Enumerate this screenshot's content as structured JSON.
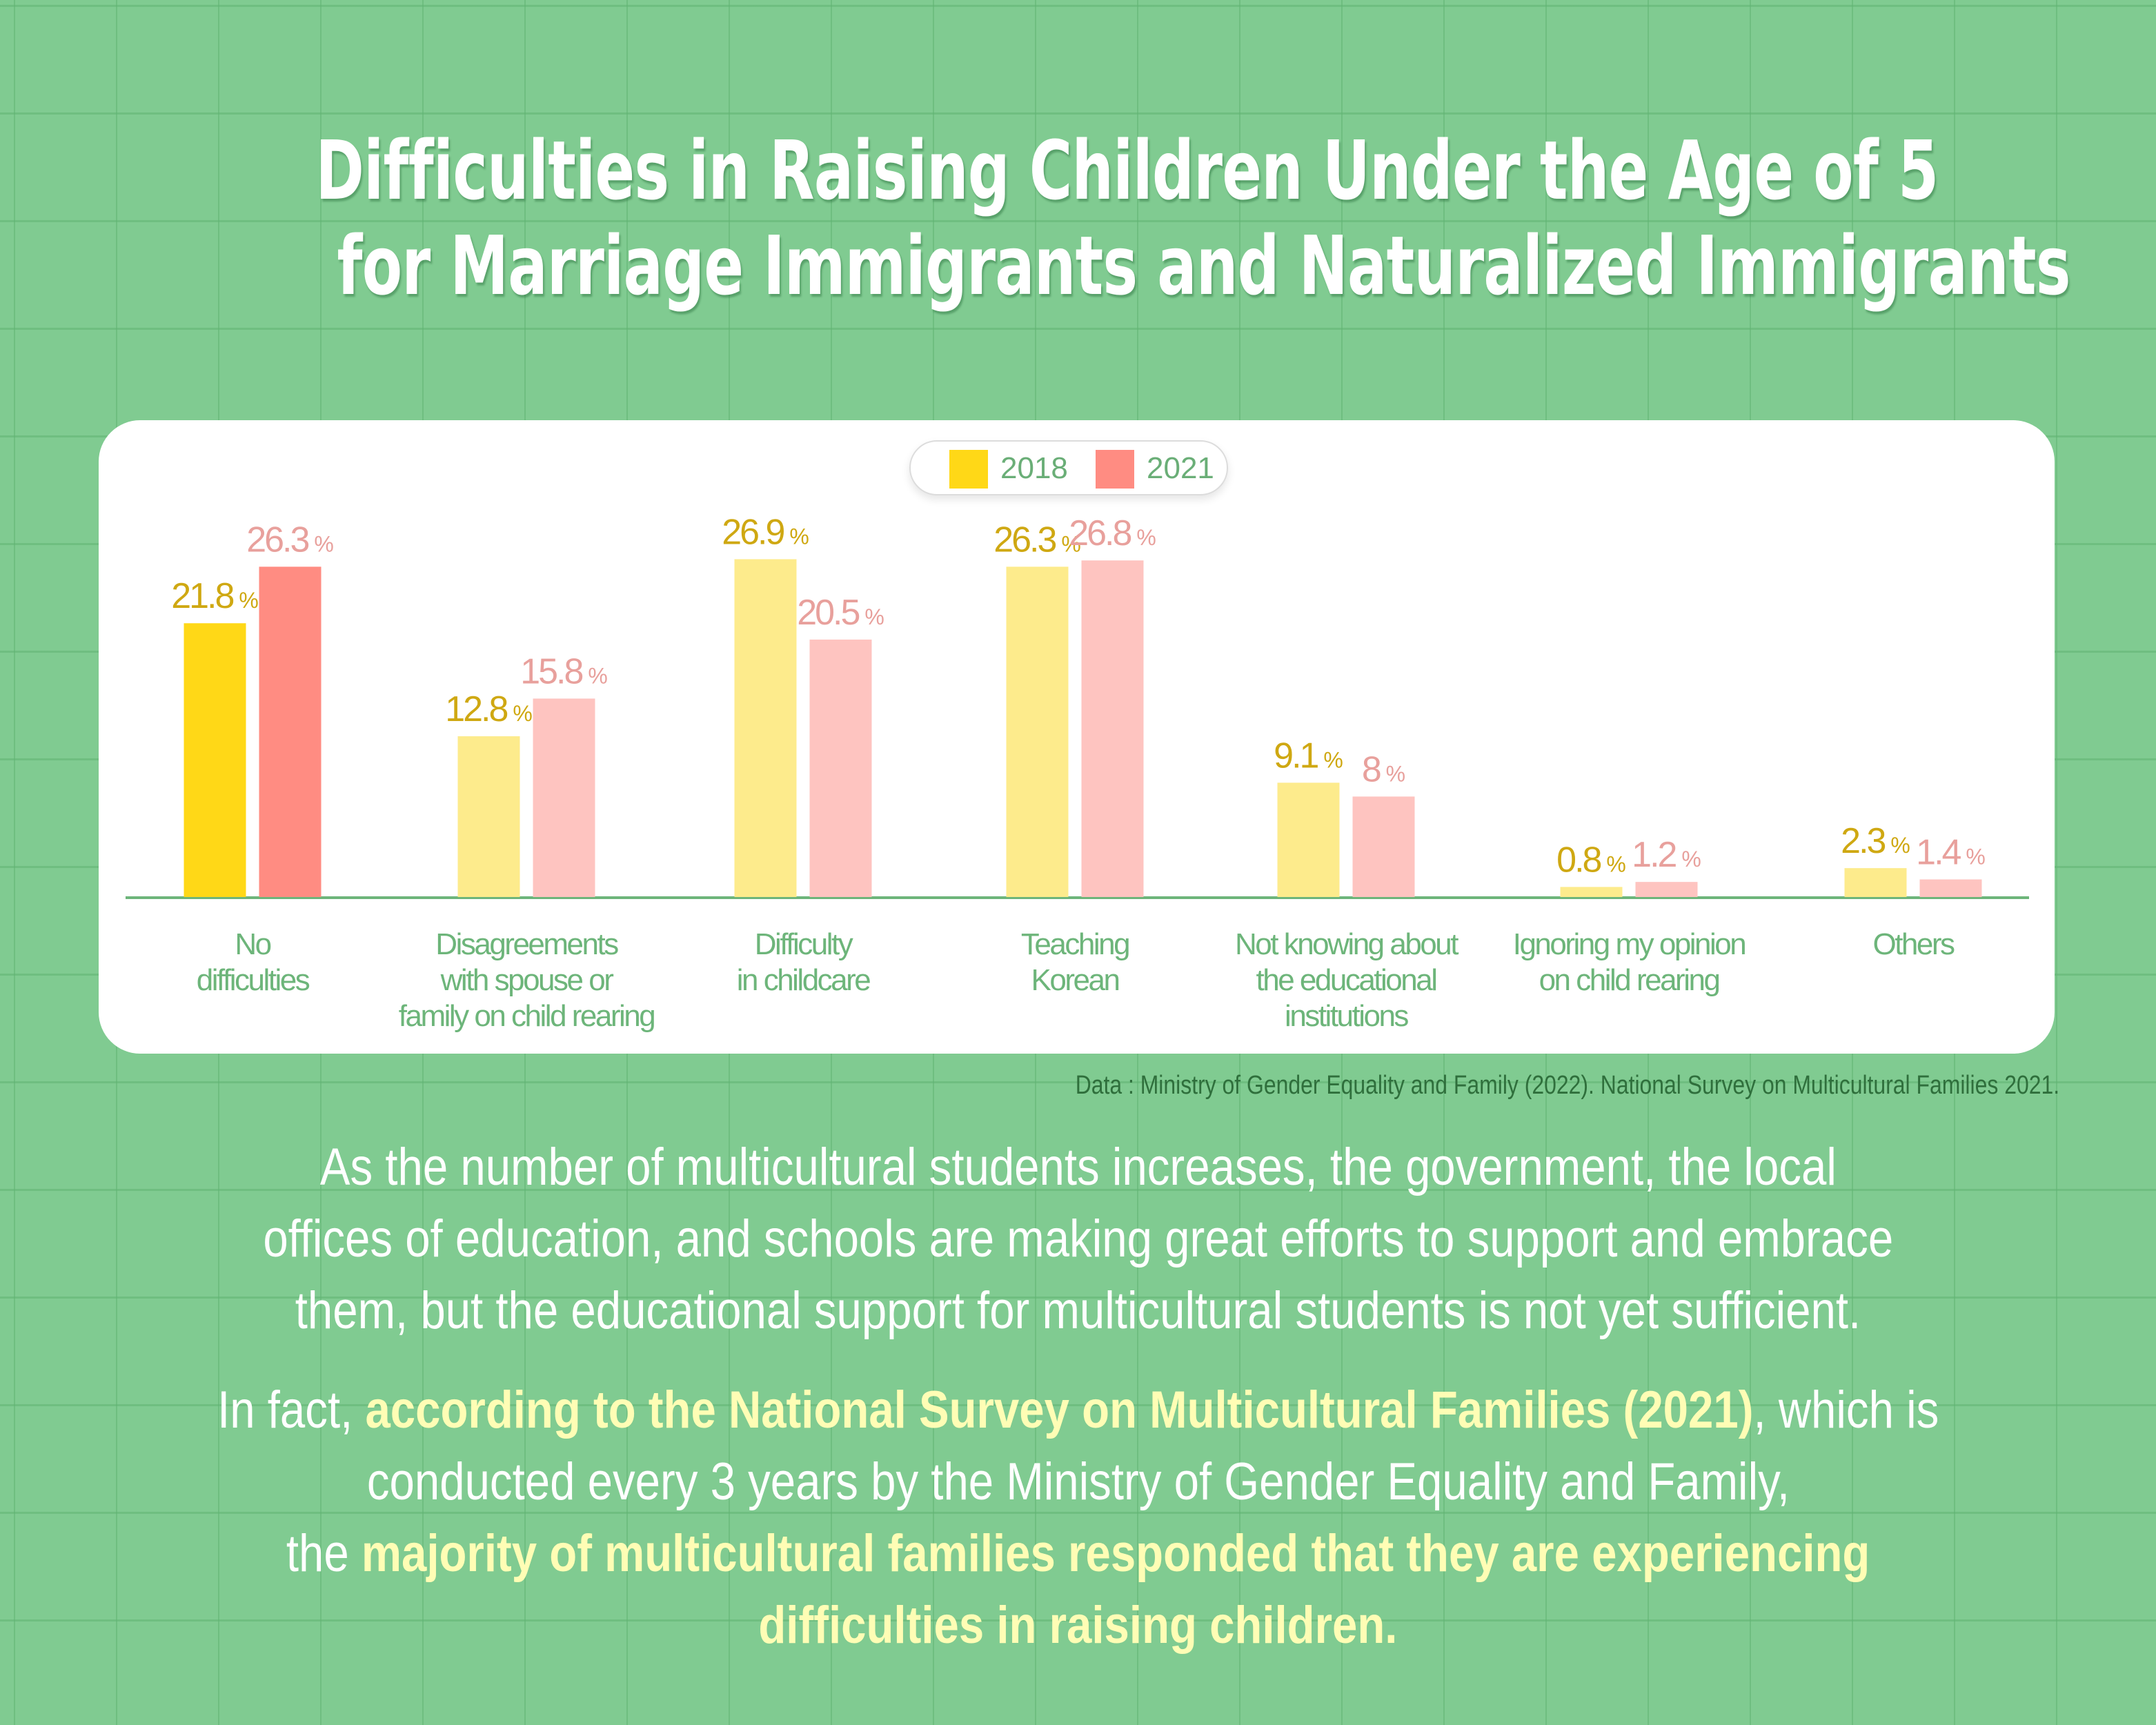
{
  "title": {
    "line1": "Difficulties in Raising Children Under the Age of 5",
    "line2": "for Marriage Immigrants and Naturalized Immigrants"
  },
  "legend": [
    {
      "label": "2018",
      "color": "#ffd817"
    },
    {
      "label": "2021",
      "color": "#ff8c82"
    }
  ],
  "colors": {
    "bar_2018_highlight": "#ffd817",
    "bar_2021_highlight": "#ff8c82",
    "bar_2018": "#fdeb8c",
    "bar_2021": "#fec4c0",
    "label_2018": "#cfa812",
    "label_2021": "#e8a09c",
    "category_label": "#6db57a",
    "axis": "#6db57a",
    "background": "#80cb91",
    "highlight_text": "#fffdb5"
  },
  "chart_data": {
    "type": "bar",
    "title": "Difficulties in Raising Children Under the Age of 5 for Marriage Immigrants and Naturalized Immigrants",
    "xlabel": "",
    "ylabel": "",
    "unit": "%",
    "ylim": [
      0,
      30
    ],
    "grid": false,
    "legend_position": "top-center",
    "categories": [
      [
        "No",
        "difficulties"
      ],
      [
        "Disagreements",
        "with spouse or",
        "family on child rearing"
      ],
      [
        "Difficulty",
        "in childcare"
      ],
      [
        "Teaching",
        "Korean"
      ],
      [
        "Not knowing about",
        "the educational",
        "institutions"
      ],
      [
        "Ignoring my opinion",
        "on child rearing"
      ],
      [
        "Others"
      ]
    ],
    "series": [
      {
        "name": "2018",
        "values": [
          21.8,
          12.8,
          26.9,
          26.3,
          9.1,
          0.8,
          2.3
        ],
        "labels": [
          "21.8",
          "12.8",
          "26.9",
          "26.3",
          "9.1",
          "0.8",
          "2.3"
        ]
      },
      {
        "name": "2021",
        "values": [
          26.3,
          15.8,
          20.5,
          26.8,
          8,
          1.2,
          1.4
        ],
        "labels": [
          "26.3",
          "15.8",
          "20.5",
          "26.8",
          "8",
          "1.2",
          "1.4"
        ]
      }
    ],
    "highlighted_category": 0
  },
  "source": "Data : Ministry of Gender Equality and Family (2022). National Survey on Multicultural Families 2021.",
  "paragraph1": {
    "lines": [
      "As the number of multicultural students increases, the government, the local",
      "offices of education, and schools are making great efforts to support and embrace",
      "them, but the educational support for multicultural students is not yet sufficient."
    ]
  },
  "paragraph2": {
    "line1": {
      "pre": "In fact, ",
      "hl": "according to the National Survey on Multicultural Families (2021)",
      "post": ", which is"
    },
    "line2": "conducted every 3 years by the Ministry of Gender Equality and Family,",
    "line3": {
      "pre": "the ",
      "hl": "majority of multicultural families responded that they are experiencing"
    },
    "line4": {
      "hl": "difficulties in raising children."
    }
  }
}
